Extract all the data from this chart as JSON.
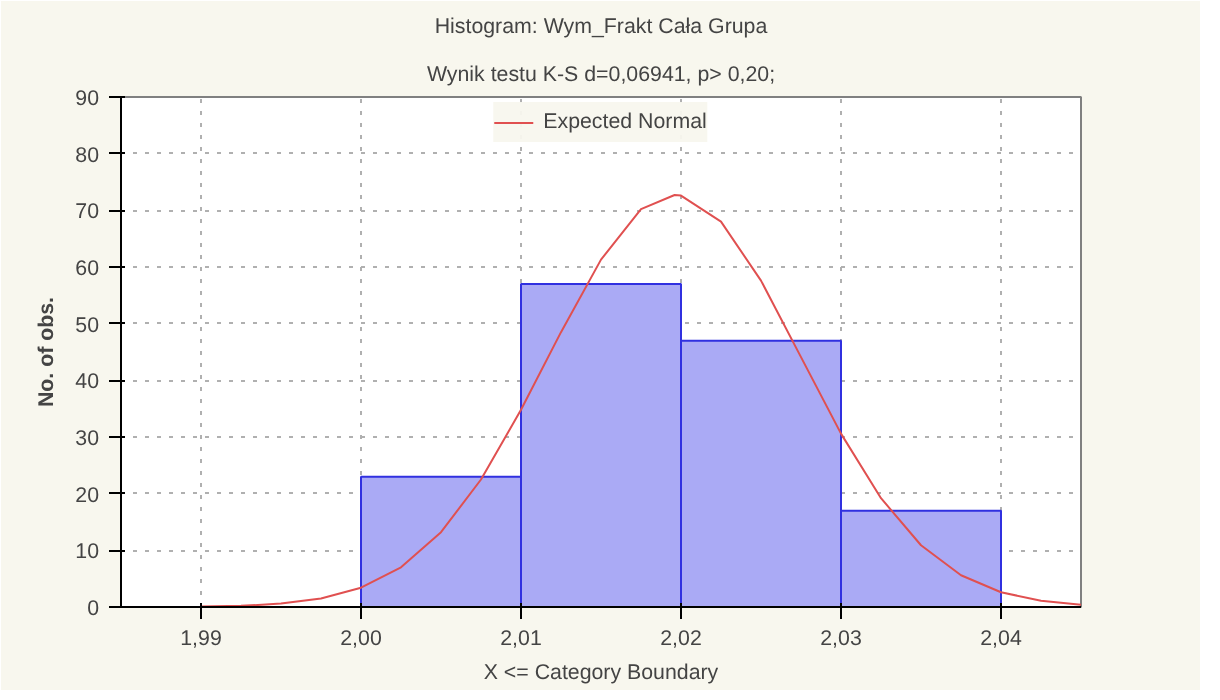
{
  "chart_data": {
    "type": "histogram",
    "title": "Histogram: Wym_Frakt Cała Grupa",
    "subtitle": "Wynik testu K-S d=0,06941, p> 0,20;",
    "xlabel": "X <= Category Boundary",
    "ylabel": "No. of obs.",
    "bins": [
      2.0,
      2.01,
      2.02,
      2.03,
      2.04
    ],
    "values": [
      23,
      57,
      47,
      17
    ],
    "color": "#aaaaf5",
    "series": [
      {
        "type": "line",
        "name": "Expected Normal",
        "color": "#e05050",
        "x": [
          1.99,
          1.9925,
          1.995,
          1.9975,
          2.0,
          2.0025,
          2.005,
          2.0075,
          2.01,
          2.0125,
          2.015,
          2.0175,
          2.0196,
          2.02,
          2.0225,
          2.025,
          2.0275,
          2.03,
          2.0325,
          2.035,
          2.0375,
          2.04,
          2.0425,
          2.045
        ],
        "values": [
          0.1,
          0.2,
          0.6,
          1.5,
          3.4,
          7.0,
          13.2,
          22.5,
          34.8,
          48.5,
          61.3,
          70.2,
          72.7,
          72.6,
          68.0,
          57.6,
          44.1,
          30.6,
          19.2,
          10.9,
          5.6,
          2.6,
          1.1,
          0.4
        ]
      }
    ],
    "xlim": [
      1.985,
      2.045
    ],
    "xticks": [
      {
        "value": 1.99,
        "label": "1,99"
      },
      {
        "value": 2.0,
        "label": "2,00"
      },
      {
        "value": 2.01,
        "label": "2,01"
      },
      {
        "value": 2.02,
        "label": "2,02"
      },
      {
        "value": 2.03,
        "label": "2,03"
      },
      {
        "value": 2.04,
        "label": "2,04"
      }
    ],
    "ylim": [
      0,
      90
    ],
    "yticks": [
      0,
      10,
      20,
      30,
      40,
      50,
      60,
      70,
      80,
      90
    ],
    "grid": true,
    "legend": "top"
  }
}
